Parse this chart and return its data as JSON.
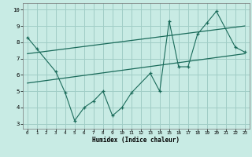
{
  "title": "",
  "xlabel": "Humidex (Indice chaleur)",
  "bg_color": "#c8ebe4",
  "grid_color": "#a0cdc6",
  "line_color": "#1a6b5a",
  "xlim": [
    -0.5,
    23.5
  ],
  "ylim": [
    2.7,
    10.4
  ],
  "xticks": [
    0,
    1,
    2,
    3,
    4,
    5,
    6,
    7,
    8,
    9,
    10,
    11,
    12,
    13,
    14,
    15,
    16,
    17,
    18,
    19,
    20,
    21,
    22,
    23
  ],
  "yticks": [
    3,
    4,
    5,
    6,
    7,
    8,
    9,
    10
  ],
  "series1_x": [
    0,
    1,
    3,
    4,
    5,
    6,
    7,
    8,
    9,
    10,
    11,
    13,
    14,
    15,
    16,
    17,
    18,
    19,
    20,
    22,
    23
  ],
  "series1_y": [
    8.3,
    7.6,
    6.2,
    4.9,
    3.2,
    4.0,
    4.4,
    5.0,
    3.5,
    4.0,
    4.9,
    6.1,
    5.0,
    9.3,
    6.5,
    6.5,
    8.5,
    9.2,
    9.9,
    7.7,
    7.4
  ],
  "series2_x": [
    0,
    23
  ],
  "series2_y": [
    5.5,
    7.3
  ],
  "series3_x": [
    0,
    23
  ],
  "series3_y": [
    7.3,
    9.0
  ]
}
